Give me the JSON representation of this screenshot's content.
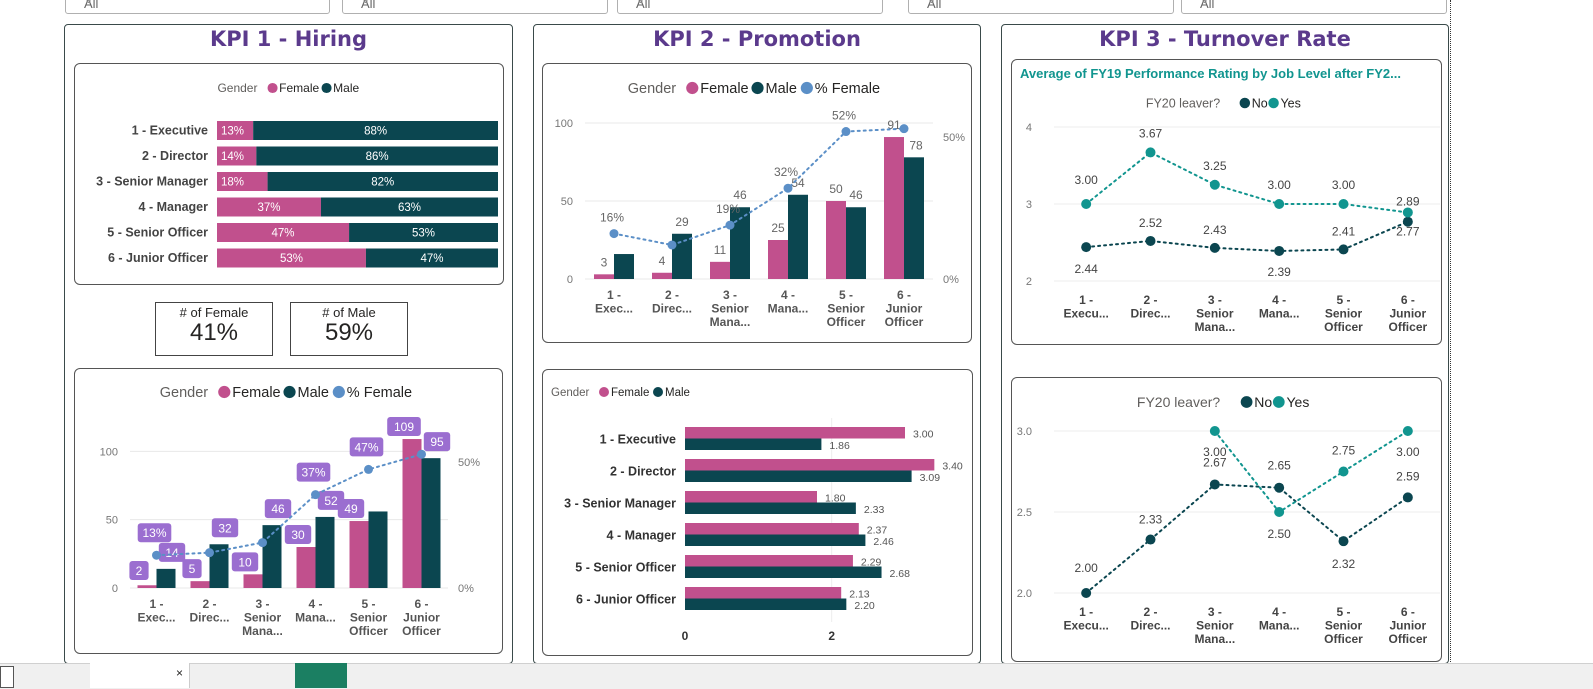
{
  "slicers": [
    "All",
    "All",
    "All",
    "All",
    "All"
  ],
  "kpi1": {
    "title": "KPI 1 - Hiring",
    "hire_pct": {
      "legend_title": "Gender",
      "legend": [
        "Female",
        "Male"
      ],
      "rows": [
        {
          "label": "1 - Executive",
          "female": 13,
          "male": 88,
          "female_label": "13%",
          "male_label": "88%"
        },
        {
          "label": "2 - Director",
          "female": 14,
          "male": 86,
          "female_label": "14%",
          "male_label": "86%"
        },
        {
          "label": "3 - Senior Manager",
          "female": 18,
          "male": 82,
          "female_label": "18%",
          "male_label": "82%"
        },
        {
          "label": "4 - Manager",
          "female": 37,
          "male": 63,
          "female_label": "37%",
          "male_label": "63%"
        },
        {
          "label": "5 - Senior Officer",
          "female": 47,
          "male": 53,
          "female_label": "47%",
          "male_label": "53%"
        },
        {
          "label": "6 - Junior Officer",
          "female": 53,
          "male": 47,
          "female_label": "53%",
          "male_label": "47%"
        }
      ]
    },
    "cards": [
      {
        "label": "# of Female",
        "value": "41%"
      },
      {
        "label": "# of Male",
        "value": "59%"
      }
    ]
  },
  "kpi2": {
    "title": "KPI 2 - Promotion"
  },
  "kpi3": {
    "title": "KPI 3 - Turnover Rate",
    "chart_title": "Average of FY19 Performance Rating by Job Level after FY2..."
  },
  "colors": {
    "female": "#c1508d",
    "male": "#0b4650",
    "pct": "#5b8fc7",
    "no": "#0b4650",
    "yes": "#11958f",
    "title": "#5b3a8c",
    "teal_title": "#11958f"
  },
  "chart_data": [
    {
      "type": "bar",
      "title": "",
      "orientation": "horizontal-stacked-100",
      "legend_title": "Gender",
      "categories": [
        "1 - Executive",
        "2 - Director",
        "3 - Senior Manager",
        "4 - Manager",
        "5 - Senior Officer",
        "6 - Junior Officer"
      ],
      "series": [
        {
          "name": "Female",
          "values": [
            13,
            14,
            18,
            37,
            47,
            53
          ]
        },
        {
          "name": "Male",
          "values": [
            88,
            86,
            82,
            63,
            53,
            47
          ]
        }
      ]
    },
    {
      "type": "bar",
      "legend_title": "Gender",
      "categories": [
        "1 - Exec...",
        "2 - Direc...",
        "3 - Senior Mana...",
        "4 - Mana...",
        "5 - Senior Officer",
        "6 - Junior Officer"
      ],
      "series": [
        {
          "name": "Female",
          "values": [
            2,
            5,
            10,
            30,
            49,
            109
          ]
        },
        {
          "name": "Male",
          "values": [
            14,
            32,
            46,
            52,
            56,
            95
          ]
        },
        {
          "name": "% Female",
          "values": [
            13,
            14,
            18,
            37,
            47,
            53
          ]
        }
      ],
      "labels": {
        "female": [
          "2",
          "5",
          "10",
          "30",
          "49",
          "109"
        ],
        "male": [
          "14",
          "32",
          "46",
          "52",
          "",
          "95"
        ],
        "pct": [
          "13%",
          "",
          "",
          "37%",
          "47%",
          ""
        ]
      },
      "yticks": [
        "0",
        "50",
        "100"
      ],
      "y2ticks": [
        "0%",
        "50%"
      ],
      "ylim": [
        0,
        120
      ],
      "y2lim": [
        0,
        0.65
      ]
    },
    {
      "type": "bar",
      "legend_title": "Gender",
      "categories": [
        "1 - Exec...",
        "2 - Direc...",
        "3 - Senior Mana...",
        "4 - Mana...",
        "5 - Senior Officer",
        "6 - Junior Officer"
      ],
      "series": [
        {
          "name": "Female",
          "values": [
            3,
            4,
            11,
            25,
            50,
            91
          ]
        },
        {
          "name": "Male",
          "values": [
            16,
            29,
            46,
            54,
            46,
            78
          ]
        },
        {
          "name": "% Female",
          "values": [
            16,
            12,
            19,
            32,
            52,
            53
          ]
        }
      ],
      "labels": {
        "female": [
          "3",
          "4",
          "11",
          "25",
          "50",
          "91"
        ],
        "male": [
          "",
          "29",
          "46",
          "54",
          "46",
          "78"
        ],
        "pct": [
          "16%",
          "",
          "19%",
          "32%",
          "52%",
          ""
        ]
      },
      "yticks": [
        "0",
        "50",
        "100"
      ],
      "y2ticks": [
        "0%",
        "50%"
      ],
      "ylim": [
        0,
        100
      ],
      "y2lim": [
        0,
        0.55
      ]
    },
    {
      "type": "bar",
      "orientation": "horizontal",
      "legend_title": "Gender",
      "categories": [
        "1 - Executive",
        "2 - Director",
        "3 - Senior Manager",
        "4 - Manager",
        "5 - Senior Officer",
        "6 - Junior Officer"
      ],
      "series": [
        {
          "name": "Female",
          "values": [
            3.0,
            3.4,
            1.8,
            2.37,
            2.29,
            2.13
          ]
        },
        {
          "name": "Male",
          "values": [
            1.86,
            3.09,
            2.33,
            2.46,
            2.68,
            2.2
          ]
        }
      ],
      "xticks": [
        "0",
        "2"
      ],
      "xlim": [
        0,
        3.5
      ]
    },
    {
      "type": "line",
      "title": "Average of FY19 Performance Rating by Job Level after FY2...",
      "legend_title": "FY20 leaver?",
      "categories": [
        "1 - Execu...",
        "2 - Direc...",
        "3 - Senior Mana...",
        "4 - Mana...",
        "5 - Senior Officer",
        "6 - Junior Officer"
      ],
      "series": [
        {
          "name": "No",
          "values": [
            2.44,
            2.52,
            2.43,
            2.39,
            2.41,
            2.77
          ]
        },
        {
          "name": "Yes",
          "values": [
            3.0,
            3.67,
            3.25,
            3.0,
            3.0,
            2.89
          ]
        }
      ],
      "labels": {
        "no": [
          "2.44",
          "2.52",
          "2.43",
          "2.39",
          "2.41",
          "2.77"
        ],
        "yes": [
          "3.00",
          "3.67",
          "3.25",
          "3.00",
          "3.00",
          "2.89"
        ]
      },
      "yticks": [
        "2",
        "3",
        "4"
      ],
      "ylim": [
        2,
        4
      ]
    },
    {
      "type": "line",
      "legend_title": "FY20 leaver?",
      "categories": [
        "1 - Execu...",
        "2 - Direc...",
        "3 - Senior Mana...",
        "4 - Mana...",
        "5 - Senior Officer",
        "6 - Junior Officer"
      ],
      "series": [
        {
          "name": "No",
          "values": [
            2.0,
            2.33,
            2.67,
            2.65,
            2.32,
            2.59
          ]
        },
        {
          "name": "Yes",
          "values": [
            null,
            null,
            3.0,
            2.5,
            2.75,
            3.0
          ]
        }
      ],
      "labels": {
        "no": [
          "2.00",
          "2.33",
          "2.67",
          "2.65",
          "2.32",
          "2.59"
        ],
        "yes": [
          "",
          "",
          "3.00",
          "2.50",
          "2.75",
          "3.00"
        ]
      },
      "yticks": [
        "2.0",
        "2.5",
        "3.0"
      ],
      "ylim": [
        2.0,
        3.0
      ]
    }
  ]
}
